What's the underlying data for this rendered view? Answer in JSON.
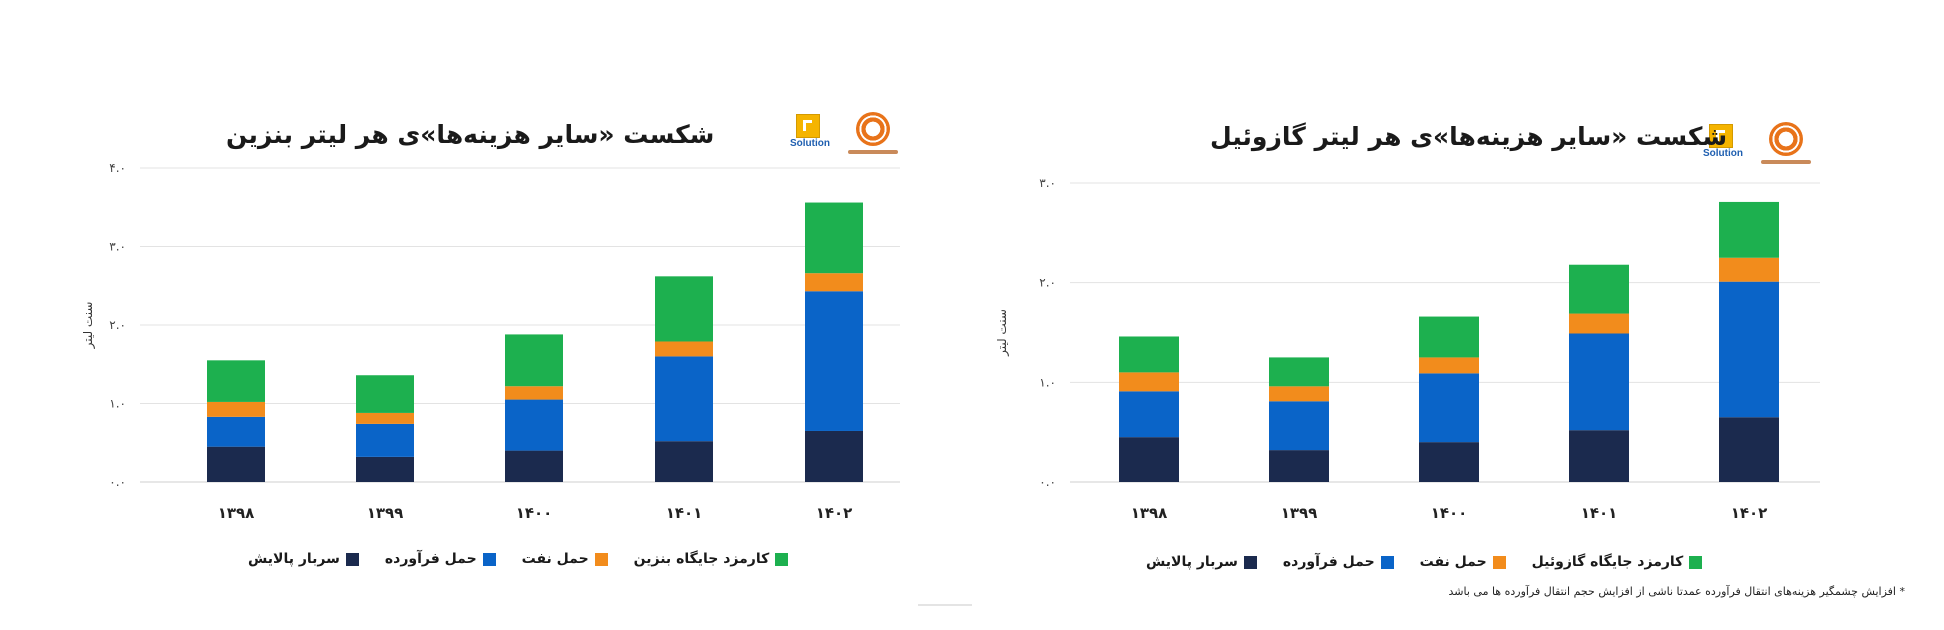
{
  "footnote": "* افزایش چشمگیر هزینه‌های انتقال فرآورده عمدتا ناشی از افزایش حجم انتقال فرآورده ها می باشد",
  "logo": {
    "brand_text": "Solution"
  },
  "chart_data": [
    {
      "type": "bar",
      "stacked": true,
      "title": "شکست «سایر هزینه‌ها»ی هر لیتر بنزین",
      "xlabel": "",
      "ylabel": "سنت لیتر",
      "ylim": [
        0,
        4
      ],
      "ytick_values": [
        0,
        1,
        2,
        3,
        4
      ],
      "yticks": [
        "۰.۰",
        "۱.۰",
        "۲.۰",
        "۳.۰",
        "۴.۰"
      ],
      "categories": [
        "۱۳۹۸",
        "۱۳۹۹",
        "۱۴۰۰",
        "۱۴۰۱",
        "۱۴۰۲"
      ],
      "grid": true,
      "legend_position": "bottom",
      "series": [
        {
          "name": "سربار پالایش",
          "color": "#1b2a4e",
          "values": [
            0.45,
            0.32,
            0.4,
            0.52,
            0.65
          ]
        },
        {
          "name": "حمل فرآورده",
          "color": "#0a64c8",
          "values": [
            0.38,
            0.42,
            0.65,
            1.08,
            1.78
          ]
        },
        {
          "name": "حمل نفت",
          "color": "#f28c1c",
          "values": [
            0.19,
            0.14,
            0.17,
            0.19,
            0.23
          ]
        },
        {
          "name": "کارمزد جایگاه بنزین",
          "color": "#1db04f",
          "values": [
            0.53,
            0.48,
            0.66,
            0.83,
            0.9
          ]
        }
      ]
    },
    {
      "type": "bar",
      "stacked": true,
      "title": "شکست «سایر هزینه‌ها»ی هر لیتر گازوئیل",
      "xlabel": "",
      "ylabel": "سنت لیتر",
      "ylim": [
        0,
        3
      ],
      "ytick_values": [
        0,
        1,
        2,
        3
      ],
      "yticks": [
        "۰.۰",
        "۱.۰",
        "۲.۰",
        "۳.۰"
      ],
      "categories": [
        "۱۳۹۸",
        "۱۳۹۹",
        "۱۴۰۰",
        "۱۴۰۱",
        "۱۴۰۲"
      ],
      "grid": true,
      "legend_position": "bottom",
      "series": [
        {
          "name": "سربار پالایش",
          "color": "#1b2a4e",
          "values": [
            0.45,
            0.32,
            0.4,
            0.52,
            0.65
          ]
        },
        {
          "name": "حمل فرآورده",
          "color": "#0a64c8",
          "values": [
            0.46,
            0.49,
            0.69,
            0.97,
            1.36
          ]
        },
        {
          "name": "حمل نفت",
          "color": "#f28c1c",
          "values": [
            0.19,
            0.15,
            0.16,
            0.2,
            0.24
          ]
        },
        {
          "name": "کارمزد جایگاه گازوئیل",
          "color": "#1db04f",
          "values": [
            0.36,
            0.29,
            0.41,
            0.49,
            0.56
          ]
        }
      ]
    }
  ]
}
